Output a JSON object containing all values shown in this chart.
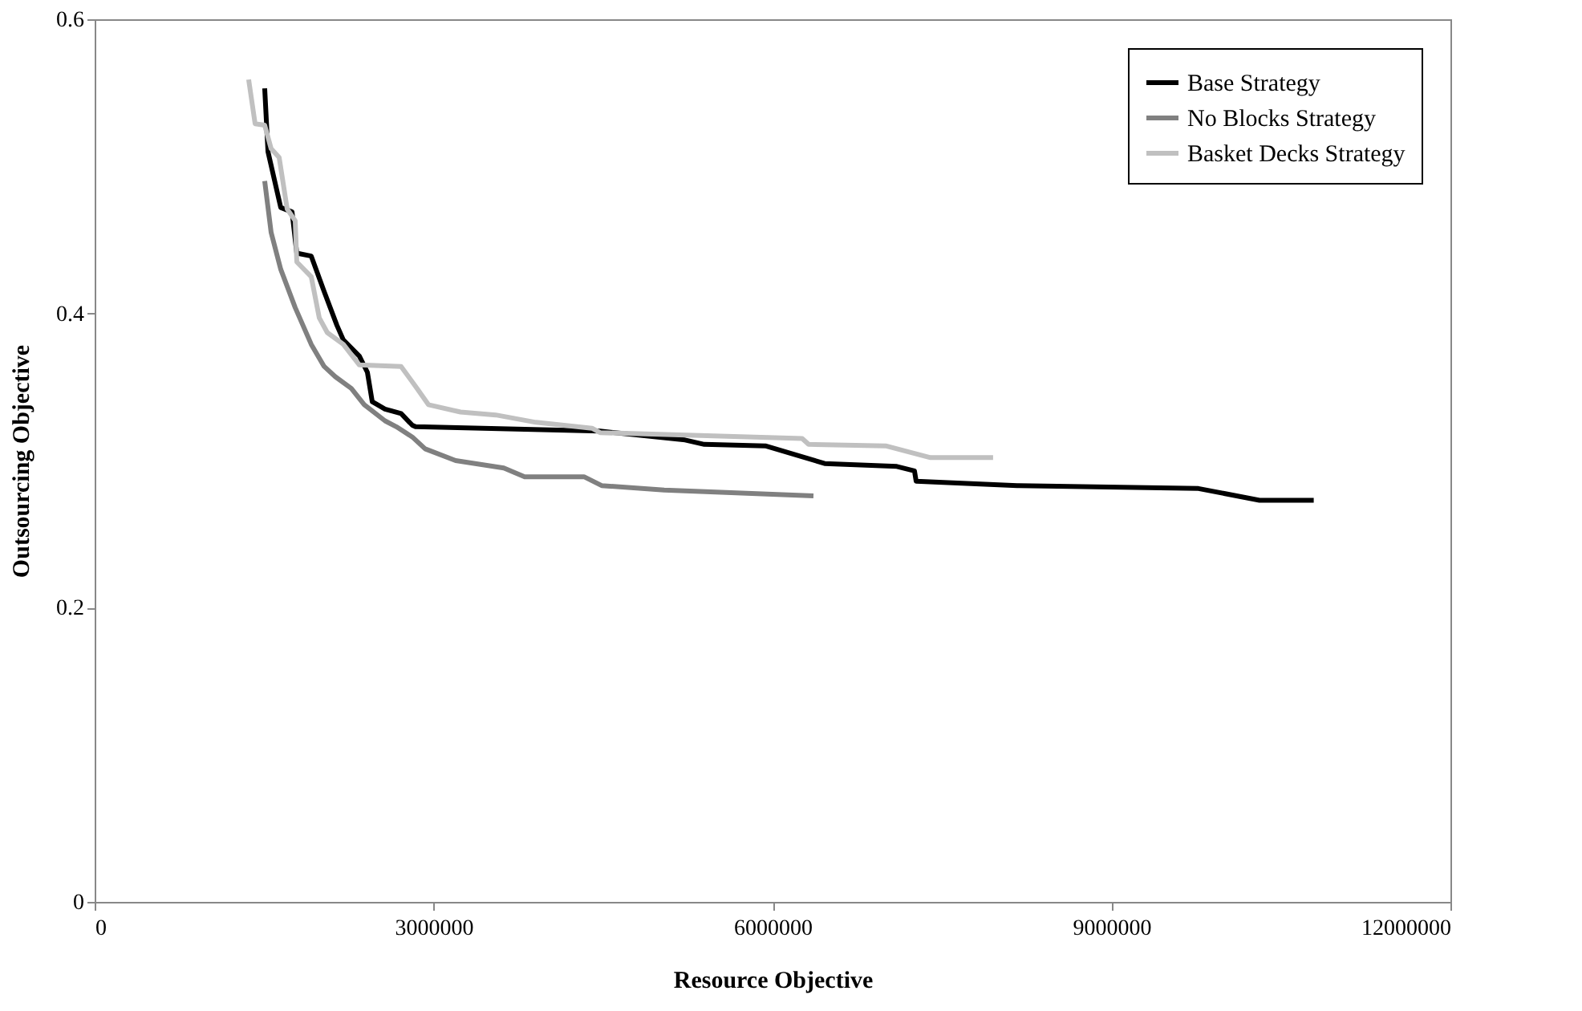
{
  "chart_data": {
    "type": "line",
    "xlabel": "Resource Objective",
    "ylabel": "Outsourcing Objective",
    "xlim": [
      0,
      12000000
    ],
    "xticks": [
      0,
      3000000,
      6000000,
      9000000,
      12000000
    ],
    "ylim": [
      0,
      0.6
    ],
    "yticks": [
      0,
      {
        "value": 0.2,
        "label": "0.2"
      },
      {
        "value": 0.4,
        "label": "0.4"
      },
      {
        "value": 0.6,
        "label": "0.6"
      }
    ],
    "grid": false,
    "legend": "top right",
    "marker": "none",
    "line_style": "solid",
    "series": [
      {
        "name": "Base Strategy",
        "color": "#000000",
        "x": [
          1505000,
          1534000,
          1647000,
          1747000,
          1789000,
          1917000,
          2031000,
          2144000,
          2201000,
          2343000,
          2414000,
          2457000,
          2570000,
          2712000,
          2812000,
          2840000,
          4473000,
          5226000,
          5396000,
          5936000,
          6461000,
          7100000,
          7256000,
          7271000,
          8165000,
          9770000,
          10310000,
          10790000
        ],
        "values": [
          0.553,
          0.51,
          0.472,
          0.469,
          0.441,
          0.439,
          0.415,
          0.392,
          0.382,
          0.371,
          0.36,
          0.34,
          0.335,
          0.332,
          0.324,
          0.323,
          0.32,
          0.314,
          0.311,
          0.31,
          0.298,
          0.296,
          0.293,
          0.286,
          0.283,
          0.281,
          0.273,
          0.273
        ]
      },
      {
        "name": "No Blocks Strategy",
        "color": "#808080",
        "x": [
          1505000,
          1562000,
          1647000,
          1775000,
          1917000,
          2031000,
          2130000,
          2272000,
          2386000,
          2570000,
          2670000,
          2812000,
          2925000,
          3195000,
          3621000,
          3806000,
          4331000,
          4487000,
          5041000,
          6362000
        ],
        "values": [
          0.49,
          0.455,
          0.43,
          0.404,
          0.379,
          0.364,
          0.357,
          0.349,
          0.338,
          0.327,
          0.323,
          0.316,
          0.308,
          0.3,
          0.295,
          0.289,
          0.289,
          0.283,
          0.28,
          0.276
        ]
      },
      {
        "name": "Basket Decks Strategy",
        "color": "#c0c0c0",
        "x": [
          1363000,
          1420000,
          1505000,
          1562000,
          1633000,
          1704000,
          1775000,
          1789000,
          1917000,
          1988000,
          2059000,
          2201000,
          2343000,
          2712000,
          2854000,
          2954000,
          3238000,
          3550000,
          3905000,
          4402000,
          4473000,
          6262000,
          6319000,
          7001000,
          7398000,
          7952000
        ],
        "values": [
          0.559,
          0.529,
          0.528,
          0.512,
          0.506,
          0.471,
          0.463,
          0.435,
          0.425,
          0.397,
          0.387,
          0.379,
          0.365,
          0.364,
          0.349,
          0.338,
          0.333,
          0.331,
          0.326,
          0.322,
          0.319,
          0.315,
          0.311,
          0.31,
          0.302,
          0.302
        ]
      }
    ]
  }
}
